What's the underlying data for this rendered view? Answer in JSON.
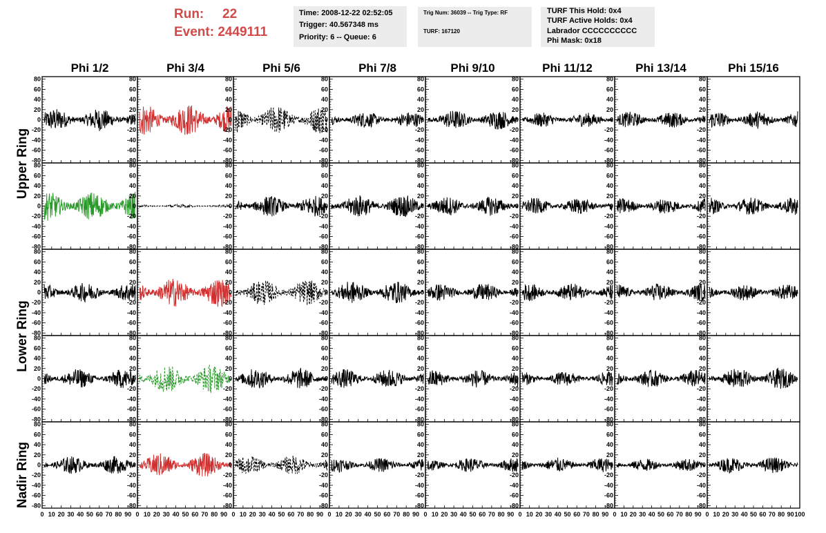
{
  "header": {
    "run_label": "Run:",
    "run_value": "22",
    "event_label": "Event:",
    "event_value": "2449111",
    "time": "Time: 2008-12-22 02:52:05",
    "trigger": "Trigger: 40.567348 ms",
    "priority": "Priority: 6 -- Queue: 6",
    "trig_num": "Trig Num: 36039 -- Trig Type: RF",
    "turf": "TURF: 167120",
    "turf_this_hold": "TURF This Hold: 0x4",
    "turf_active_holds": "TURF Active Holds: 0x4",
    "labrador": "Labrador CCCCCCCCCC",
    "phi_mask": "Phi Mask: 0x18"
  },
  "chart_data": {
    "type": "line",
    "columns": [
      "Phi 1/2",
      "Phi 3/4",
      "Phi 5/6",
      "Phi 7/8",
      "Phi 9/10",
      "Phi 11/12",
      "Phi 13/14",
      "Phi 15/16"
    ],
    "row_labels": [
      "Upper Ring",
      "Lower Ring",
      "Nadir Ring"
    ],
    "ylim": [
      -85,
      85
    ],
    "y_ticks": [
      80,
      60,
      40,
      20,
      0,
      -20,
      -40,
      -60,
      -80
    ],
    "xlim": [
      0,
      100
    ],
    "x_ticks": [
      0,
      10,
      20,
      30,
      40,
      50,
      60,
      70,
      80,
      90,
      100
    ],
    "colors": {
      "normal": "#000000",
      "triggered_red": "#d03030",
      "triggered_green": "#2a9a2a"
    },
    "panels": [
      [
        {
          "color": "normal",
          "style": "solid",
          "amp": 14
        },
        {
          "color": "triggered_red",
          "style": "solid",
          "amp": 20
        },
        {
          "color": "normal",
          "style": "dashed",
          "amp": 18
        },
        {
          "color": "normal",
          "style": "solid",
          "amp": 10
        },
        {
          "color": "normal",
          "style": "solid",
          "amp": 12
        },
        {
          "color": "normal",
          "style": "solid",
          "amp": 9
        },
        {
          "color": "normal",
          "style": "solid",
          "amp": 10
        },
        {
          "color": "normal",
          "style": "solid",
          "amp": 11
        }
      ],
      [
        {
          "color": "triggered_green",
          "style": "solid",
          "amp": 18
        },
        {
          "color": "normal",
          "style": "dashed",
          "amp": 2
        },
        {
          "color": "normal",
          "style": "solid",
          "amp": 13
        },
        {
          "color": "normal",
          "style": "solid",
          "amp": 14
        },
        {
          "color": "normal",
          "style": "solid",
          "amp": 12
        },
        {
          "color": "normal",
          "style": "solid",
          "amp": 10
        },
        {
          "color": "normal",
          "style": "solid",
          "amp": 10
        },
        {
          "color": "normal",
          "style": "solid",
          "amp": 11
        }
      ],
      [
        {
          "color": "normal",
          "style": "solid",
          "amp": 12
        },
        {
          "color": "triggered_red",
          "style": "solid",
          "amp": 18
        },
        {
          "color": "normal",
          "style": "dashed",
          "amp": 16
        },
        {
          "color": "normal",
          "style": "solid",
          "amp": 14
        },
        {
          "color": "normal",
          "style": "solid",
          "amp": 11
        },
        {
          "color": "normal",
          "style": "solid",
          "amp": 11
        },
        {
          "color": "normal",
          "style": "solid",
          "amp": 11
        },
        {
          "color": "normal",
          "style": "solid",
          "amp": 10
        }
      ],
      [
        {
          "color": "normal",
          "style": "solid",
          "amp": 12
        },
        {
          "color": "triggered_green",
          "style": "dashed",
          "amp": 18
        },
        {
          "color": "normal",
          "style": "solid",
          "amp": 13
        },
        {
          "color": "normal",
          "style": "solid",
          "amp": 12
        },
        {
          "color": "normal",
          "style": "solid",
          "amp": 11
        },
        {
          "color": "normal",
          "style": "solid",
          "amp": 9
        },
        {
          "color": "normal",
          "style": "solid",
          "amp": 11
        },
        {
          "color": "normal",
          "style": "solid",
          "amp": 13
        }
      ],
      [
        {
          "color": "normal",
          "style": "solid",
          "amp": 11
        },
        {
          "color": "triggered_red",
          "style": "solid",
          "amp": 15
        },
        {
          "color": "normal",
          "style": "dashed",
          "amp": 12
        },
        {
          "color": "normal",
          "style": "solid",
          "amp": 9
        },
        {
          "color": "normal",
          "style": "solid",
          "amp": 9
        },
        {
          "color": "normal",
          "style": "solid",
          "amp": 9
        },
        {
          "color": "normal",
          "style": "solid",
          "amp": 8
        },
        {
          "color": "normal",
          "style": "solid",
          "amp": 10
        }
      ]
    ]
  }
}
